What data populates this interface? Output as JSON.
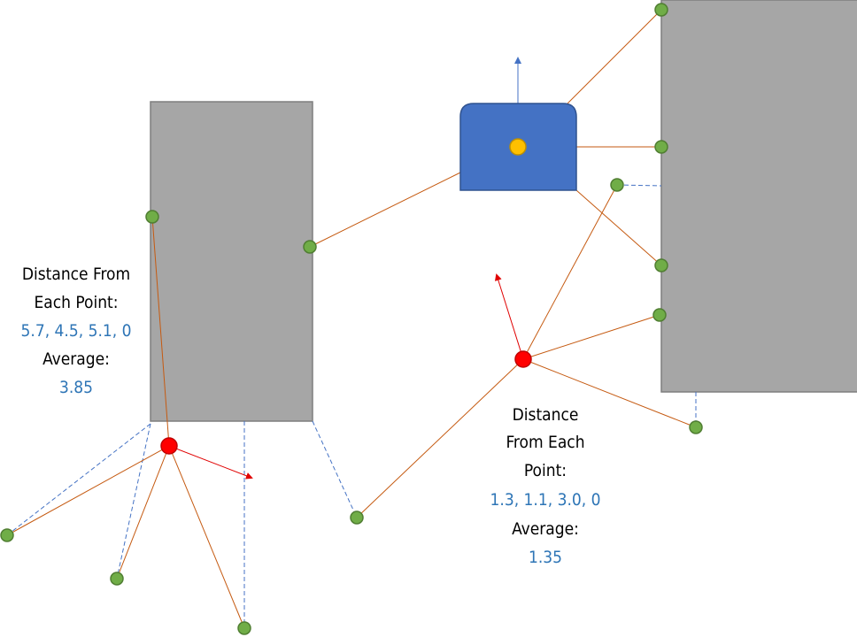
{
  "colors": {
    "obstacle_fill": "#a6a6a6",
    "obstacle_stroke": "#7f7f7f",
    "robot_fill": "#4472c4",
    "robot_stroke": "#2f528f",
    "robot_center": "#ffc000",
    "point_fill": "#70ad47",
    "point_stroke": "#507e32",
    "candidate_fill": "#ff0000",
    "candidate_stroke": "#c00000",
    "link_line": "#c55a11",
    "projection_line": "#4472c4",
    "arrow_red": "#e00000",
    "arrow_blue": "#4472c4",
    "value_text": "#2e75b6"
  },
  "annotations": {
    "left": {
      "line1": "Distance From",
      "line2": "Each Point:",
      "values": "5.7, 4.5, 5.1, 0",
      "average_label": "Average:",
      "average_value": "3.85"
    },
    "right": {
      "line1": "Distance",
      "line2": "From Each",
      "line3": "Point:",
      "values": "1.3, 1.1, 3.0, 0",
      "average_label": "Average:",
      "average_value": "1.35"
    }
  }
}
